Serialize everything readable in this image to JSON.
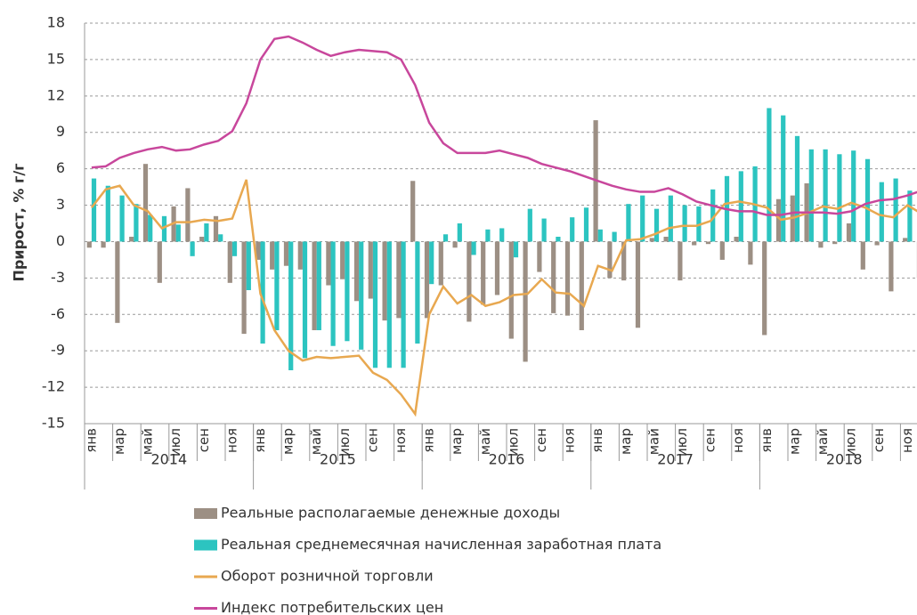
{
  "chart_data": {
    "type": "bar_line",
    "y_label": "Прирост, % г/г",
    "categories": [
      "янв",
      null,
      "мар",
      null,
      "май",
      null,
      "июл",
      null,
      "сен",
      null,
      "ноя",
      null,
      "янв",
      null,
      "мар",
      null,
      "май",
      null,
      "июл",
      null,
      "сен",
      null,
      "ноя",
      null,
      "янв",
      null,
      "мар",
      null,
      "май",
      null,
      "июл",
      null,
      "сен",
      null,
      "ноя",
      null,
      "янв",
      null,
      "мар",
      null,
      "май",
      null,
      "июл",
      null,
      "сен",
      null,
      "ноя",
      null,
      "янв",
      null,
      "мар",
      null,
      "май",
      null,
      "июл",
      null,
      "сен",
      null,
      "ноя",
      null
    ],
    "years": [
      "2014",
      "2015",
      "2016",
      "2017",
      "2018"
    ],
    "ylim": [
      -15,
      18
    ],
    "yticks": [
      -15,
      -12,
      -9,
      -6,
      -3,
      0,
      3,
      6,
      9,
      12,
      15,
      18
    ],
    "grid": true,
    "series": [
      {
        "name": "Реальные располагаемые денежные доходы",
        "kind": "bar",
        "color": "#9c8f84",
        "values": [
          -0.5,
          -0.5,
          -6.7,
          0.4,
          6.4,
          -3.4,
          2.9,
          4.4,
          0.4,
          2.1,
          -3.4,
          -7.6,
          -1.5,
          -2.3,
          -2.0,
          -2.3,
          -7.3,
          -3.6,
          -3.1,
          -4.9,
          -4.7,
          -6.5,
          -6.3,
          5.0,
          -6.3,
          -3.6,
          -0.5,
          -6.6,
          -5.2,
          -4.4,
          -8.0,
          -9.9,
          -2.5,
          -5.9,
          -6.1,
          -7.3,
          10.0,
          -3.0,
          -3.2,
          -7.1,
          0.3,
          0.4,
          -3.2,
          -0.3,
          -0.2,
          -1.5,
          0.4,
          -1.9,
          -7.7,
          3.5,
          3.8,
          4.8,
          -0.5,
          -0.2,
          1.5,
          -2.3,
          -0.3,
          -4.1,
          0.3,
          -3.0
        ]
      },
      {
        "name": "Реальная среднемесячная начисленная заработная плата",
        "kind": "bar",
        "color": "#2cc4c0",
        "values": [
          5.2,
          4.6,
          3.8,
          3.1,
          2.2,
          2.1,
          1.4,
          -1.2,
          1.5,
          0.6,
          -1.2,
          -4.0,
          -8.4,
          -7.3,
          -10.6,
          -9.6,
          -7.3,
          -8.6,
          -8.2,
          -8.9,
          -10.4,
          -10.4,
          -10.4,
          -8.4,
          -3.5,
          0.6,
          1.5,
          -1.1,
          1.0,
          1.1,
          -1.3,
          2.7,
          1.9,
          0.4,
          2.0,
          2.8,
          1.0,
          0.8,
          3.1,
          3.8,
          2.7,
          3.8,
          3.0,
          2.9,
          4.3,
          5.4,
          5.8,
          6.2,
          11.0,
          10.4,
          8.7,
          7.6,
          7.6,
          7.2,
          7.5,
          6.8,
          4.9,
          5.2,
          4.2,
          3.0
        ]
      },
      {
        "name": "Оборот розничной торговли",
        "kind": "line",
        "color": "#e8a850",
        "values": [
          2.8,
          4.3,
          4.6,
          3.0,
          2.5,
          1.1,
          1.6,
          1.6,
          1.8,
          1.7,
          1.9,
          5.1,
          -4.3,
          -7.3,
          -9.0,
          -9.8,
          -9.5,
          -9.6,
          -9.5,
          -9.4,
          -10.8,
          -11.4,
          -12.6,
          -14.2,
          -6.0,
          -3.7,
          -5.1,
          -4.4,
          -5.3,
          -5.0,
          -4.4,
          -4.3,
          -3.1,
          -4.2,
          -4.3,
          -5.3,
          -2.0,
          -2.4,
          0.1,
          0.2,
          0.6,
          1.1,
          1.3,
          1.3,
          1.7,
          3.1,
          3.3,
          3.1,
          2.8,
          1.8,
          2.0,
          2.4,
          2.9,
          2.7,
          3.2,
          2.8,
          2.2,
          2.0,
          3.0,
          2.3
        ]
      },
      {
        "name": "Индекс потребительских цен",
        "kind": "line",
        "color": "#c8479c",
        "values": [
          6.1,
          6.2,
          6.9,
          7.3,
          7.6,
          7.8,
          7.5,
          7.6,
          8.0,
          8.3,
          9.1,
          11.4,
          15.0,
          16.7,
          16.9,
          16.4,
          15.8,
          15.3,
          15.6,
          15.8,
          15.7,
          15.6,
          15.0,
          12.9,
          9.8,
          8.1,
          7.3,
          7.3,
          7.3,
          7.5,
          7.2,
          6.9,
          6.4,
          6.1,
          5.8,
          5.4,
          5.0,
          4.6,
          4.3,
          4.1,
          4.1,
          4.4,
          3.9,
          3.3,
          3.0,
          2.7,
          2.5,
          2.5,
          2.2,
          2.2,
          2.4,
          2.4,
          2.4,
          2.3,
          2.5,
          3.1,
          3.4,
          3.5,
          3.8,
          4.2
        ]
      }
    ]
  }
}
